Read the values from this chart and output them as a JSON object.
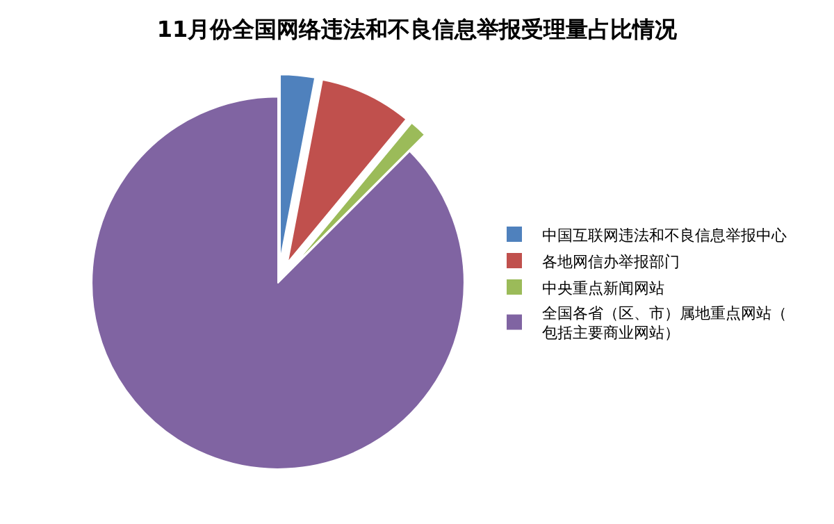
{
  "chart_data": {
    "type": "pie",
    "title": "11月份全国网络违法和不良信息举报受理量占比情况",
    "categories": [
      "中国互联网违法和不良信息举报中心",
      "各地网信办举报部门",
      "中央重点新闻网站",
      "全国各省（区、市）属地重点网站（包括主要商业网站）"
    ],
    "values": [
      3,
      8,
      1.5,
      87.5
    ],
    "colors": [
      "#4f81bd",
      "#c0504d",
      "#9bbb59",
      "#8064a2"
    ],
    "legend": "right"
  }
}
